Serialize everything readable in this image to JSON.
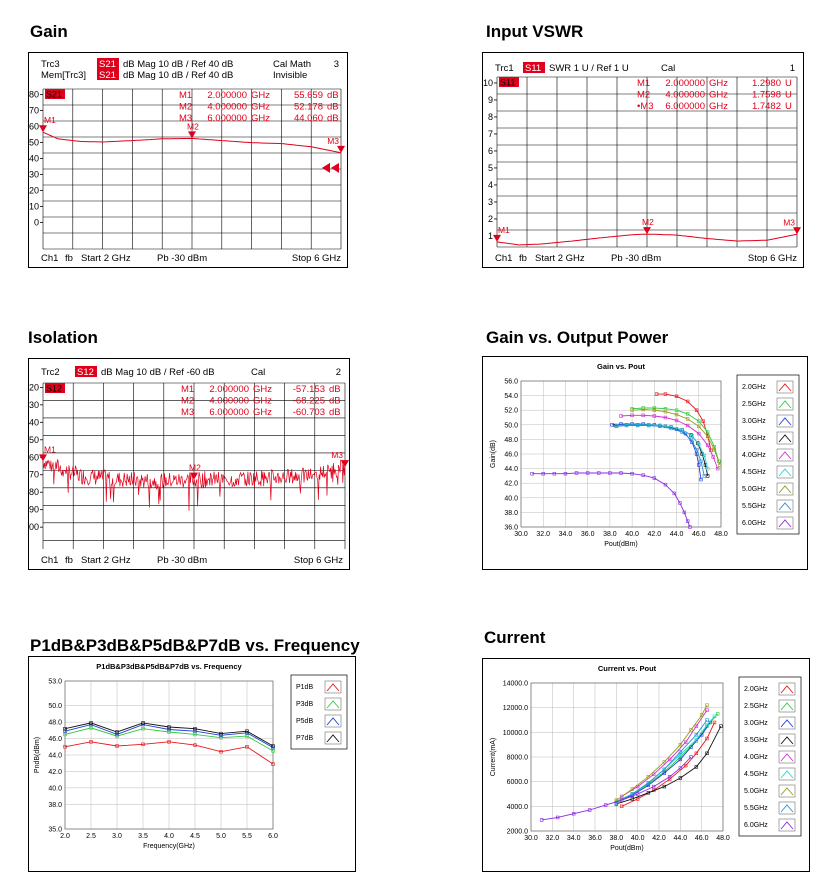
{
  "section_titles": {
    "gain": "Gain",
    "vswr": "Input VSWR",
    "isolation": "Isolation",
    "gvp": "Gain vs. Output Power",
    "p1db": "P1dB&P3dB&P5dB&P7dB vs. Frequency",
    "current": "Current"
  },
  "colors": {
    "trace": "#e0001b",
    "badge": "#e0001b",
    "grid": "#000000"
  },
  "vna_gain": {
    "header": [
      {
        "label": "Trc3",
        "badge": "S21",
        "rest": "dB Mag  10 dB /  Ref 40 dB",
        "extra": "Cal Math",
        "num": "3"
      },
      {
        "label": "Mem[Trc3]",
        "badge": "S21",
        "rest": "dB Mag  10 dB /  Ref 40 dB",
        "extra": "Invisible",
        "num": ""
      }
    ],
    "trace_badge": "S21",
    "markers": [
      {
        "name": "M1",
        "freq": "2.000000",
        "unit": "GHz",
        "value": "55.659",
        "vunit": "dB"
      },
      {
        "name": "M2",
        "freq": "4.000000",
        "unit": "GHz",
        "value": "52.178",
        "vunit": "dB"
      },
      {
        "name": "M3",
        "freq": "6.000000",
        "unit": "GHz",
        "value": "44.060",
        "vunit": "dB"
      }
    ],
    "marker_labels": [
      "M1",
      "M2",
      "M3"
    ],
    "yticks": [
      "80",
      "70",
      "60",
      "50",
      "40",
      "30",
      "20",
      "10",
      "0"
    ],
    "footer": {
      "ch": "Ch1",
      "fb": "fb",
      "start": "Start  2 GHz",
      "pb": "Pb   -30 dBm",
      "stop": "Stop  6 GHz"
    }
  },
  "vna_vswr": {
    "header": {
      "label": "Trc1",
      "badge": "S11",
      "rest": "SWR  1 U /  Ref 1 U",
      "extra": "Cal",
      "num": "1"
    },
    "trace_badge": "S11",
    "markers": [
      {
        "name": "M1",
        "freq": "2.000000",
        "unit": "GHz",
        "value": "1.2980",
        "vunit": "U"
      },
      {
        "name": "M2",
        "freq": "4.000000",
        "unit": "GHz",
        "value": "1.7598",
        "vunit": "U"
      },
      {
        "name": "•M3",
        "freq": "6.000000",
        "unit": "GHz",
        "value": "1.7482",
        "vunit": "U"
      }
    ],
    "marker_labels": [
      "M1",
      "M2",
      "M3"
    ],
    "yticks": [
      "10",
      "9",
      "8",
      "7",
      "6",
      "5",
      "4",
      "3",
      "2",
      "1"
    ],
    "footer": {
      "ch": "Ch1",
      "fb": "fb",
      "start": "Start  2 GHz",
      "pb": "Pb   -30 dBm",
      "stop": "Stop  6 GHz"
    }
  },
  "vna_iso": {
    "header": {
      "label": "Trc2",
      "badge": "S12",
      "rest": "dB Mag  10 dB /  Ref -60 dB",
      "extra": "Cal",
      "num": "2"
    },
    "trace_badge": "S12",
    "markers": [
      {
        "name": "M1",
        "freq": "2.000000",
        "unit": "GHz",
        "value": "-57.153",
        "vunit": "dB"
      },
      {
        "name": "M2",
        "freq": "4.000000",
        "unit": "GHz",
        "value": "-68.225",
        "vunit": "dB"
      },
      {
        "name": "M3",
        "freq": "6.000000",
        "unit": "GHz",
        "value": "-60.703",
        "vunit": "dB"
      }
    ],
    "marker_labels": [
      "M1",
      "M2",
      "M3"
    ],
    "yticks": [
      "-20",
      "-30",
      "-40",
      "-50",
      "-60",
      "-70",
      "-80",
      "-90",
      "-100"
    ],
    "footer": {
      "ch": "Ch1",
      "fb": "fb",
      "start": "Start  2 GHz",
      "pb": "Pb   -30 dBm",
      "stop": "Stop  6 GHz"
    }
  },
  "chart_data": [
    {
      "id": "gain",
      "type": "line",
      "title": "",
      "x_range_ghz": [
        2,
        6
      ],
      "ylim": [
        -10,
        80
      ],
      "x": [
        2.0,
        2.2,
        2.5,
        2.8,
        3.0,
        3.3,
        3.6,
        4.0,
        4.4,
        4.8,
        5.2,
        5.6,
        6.0
      ],
      "series": [
        {
          "values": [
            55.7,
            52,
            50.5,
            50.2,
            50.6,
            51.2,
            52.0,
            52.2,
            51.0,
            49.8,
            49.3,
            47.5,
            44.1
          ]
        }
      ]
    },
    {
      "id": "vswr",
      "type": "line",
      "title": "",
      "x_range_ghz": [
        2,
        6
      ],
      "ylim": [
        1,
        11
      ],
      "x": [
        2.0,
        2.3,
        2.6,
        3.0,
        3.4,
        3.8,
        4.0,
        4.4,
        4.8,
        5.2,
        5.6,
        6.0
      ],
      "series": [
        {
          "values": [
            1.3,
            1.12,
            1.18,
            1.35,
            1.55,
            1.72,
            1.76,
            1.7,
            1.5,
            1.35,
            1.4,
            1.75
          ]
        }
      ]
    },
    {
      "id": "isolation",
      "type": "line",
      "title": "",
      "x_range_ghz": [
        2,
        6
      ],
      "ylim": [
        -110,
        -10
      ],
      "x": [
        2.0,
        2.5,
        3.0,
        3.5,
        4.0,
        4.5,
        5.0,
        5.5,
        6.0
      ],
      "series": [
        {
          "values": [
            -57.2,
            -66,
            -68,
            -69,
            -68.2,
            -68,
            -67,
            -66,
            -60.7
          ]
        }
      ]
    },
    {
      "id": "gain_vs_pout",
      "type": "line",
      "title": "Gain vs. Pout",
      "xlabel": "Pout(dBm)",
      "ylabel": "Gain(dB)",
      "xlim": [
        30,
        48
      ],
      "ylim": [
        36,
        56
      ],
      "xticks": [
        "30.0",
        "32.0",
        "34.0",
        "36.0",
        "38.0",
        "40.0",
        "42.0",
        "44.0",
        "46.0",
        "48.0"
      ],
      "yticks": [
        "56.0",
        "54.0",
        "52.0",
        "50.0",
        "48.0",
        "46.0",
        "44.0",
        "42.0",
        "40.0",
        "38.0",
        "36.0"
      ],
      "legend_position": "right",
      "series": [
        {
          "name": "2.0GHz",
          "color": "#e8191b",
          "x": [
            42.2,
            43.0,
            44.0,
            45.0,
            45.8,
            46.4,
            46.8,
            47.1
          ],
          "y": [
            54.2,
            54.2,
            53.9,
            53.2,
            52.0,
            50.5,
            48.5,
            46.5
          ]
        },
        {
          "name": "2.5GHz",
          "color": "#2ecc40",
          "x": [
            40.0,
            41.0,
            42.0,
            43.0,
            44.0,
            45.0,
            46.0,
            46.8,
            47.4,
            47.8
          ],
          "y": [
            52.2,
            52.3,
            52.3,
            52.2,
            52.0,
            51.5,
            50.5,
            49.0,
            47.0,
            45.0
          ]
        },
        {
          "name": "3.0GHz",
          "color": "#1f3fd6",
          "x": [
            38.2,
            39.0,
            40.0,
            41.0,
            42.0,
            43.0,
            44.0,
            44.8,
            45.4,
            45.8,
            46.0,
            46.2
          ],
          "y": [
            50.0,
            50.1,
            50.1,
            50.1,
            50.0,
            49.8,
            49.4,
            48.8,
            47.6,
            46.0,
            44.5,
            42.5
          ]
        },
        {
          "name": "3.5GHz",
          "color": "#111111",
          "x": [
            38.5,
            39.5,
            40.5,
            41.5,
            42.5,
            43.5,
            44.5,
            45.3,
            45.9,
            46.3,
            46.6,
            46.8
          ],
          "y": [
            49.9,
            50.0,
            50.0,
            50.0,
            49.9,
            49.7,
            49.3,
            48.6,
            47.5,
            46.0,
            44.5,
            43.0
          ]
        },
        {
          "name": "4.0GHz",
          "color": "#d12fd1",
          "x": [
            39.0,
            40.0,
            41.0,
            42.0,
            43.0,
            44.0,
            45.0,
            46.0,
            46.8,
            47.3,
            47.7
          ],
          "y": [
            51.2,
            51.3,
            51.3,
            51.2,
            51.0,
            50.6,
            49.9,
            48.8,
            47.2,
            45.6,
            44.0
          ]
        },
        {
          "name": "4.5GHz",
          "color": "#22d6d6",
          "x": [
            38.6,
            39.5,
            40.5,
            41.5,
            42.5,
            43.5,
            44.5,
            45.4,
            46.0,
            46.5,
            46.8
          ],
          "y": [
            49.9,
            50.0,
            50.0,
            50.0,
            49.9,
            49.7,
            49.3,
            48.5,
            47.3,
            45.8,
            44.0
          ]
        },
        {
          "name": "5.0GHz",
          "color": "#9a9a1a",
          "x": [
            40.0,
            41.0,
            42.0,
            43.0,
            44.0,
            45.0,
            46.0,
            46.8,
            47.4,
            47.9
          ],
          "y": [
            52.0,
            52.1,
            52.0,
            51.8,
            51.4,
            50.8,
            49.8,
            48.4,
            46.6,
            44.5
          ]
        },
        {
          "name": "5.5GHz",
          "color": "#2b8fd8",
          "x": [
            38.6,
            39.5,
            40.5,
            41.5,
            42.5,
            43.5,
            44.5,
            45.3,
            45.8,
            46.2,
            46.5
          ],
          "y": [
            49.8,
            49.9,
            49.9,
            49.9,
            49.8,
            49.5,
            49.0,
            48.0,
            46.6,
            45.0,
            43.0
          ]
        },
        {
          "name": "6.0GHz",
          "color": "#8a2be2",
          "x": [
            31.0,
            32.0,
            33.0,
            34.0,
            35.0,
            36.0,
            37.0,
            38.0,
            39.0,
            40.0,
            41.0,
            42.0,
            43.0,
            43.8,
            44.3,
            44.7,
            45.0,
            45.2
          ],
          "y": [
            43.3,
            43.3,
            43.3,
            43.3,
            43.4,
            43.4,
            43.4,
            43.4,
            43.4,
            43.3,
            43.1,
            42.7,
            41.8,
            40.6,
            39.3,
            38.0,
            36.8,
            36.0
          ]
        }
      ]
    },
    {
      "id": "p1db",
      "type": "line",
      "title": "P1dB&P3dB&P5dB&P7dB vs. Frequency",
      "xlabel": "Frequency(GHz)",
      "ylabel": "PndB(dBm)",
      "xlim": [
        2.0,
        6.0
      ],
      "ylim": [
        35.0,
        53.0
      ],
      "xticks": [
        "2.0",
        "2.5",
        "3.0",
        "3.5",
        "4.0",
        "4.5",
        "5.0",
        "5.5",
        "6.0"
      ],
      "yticks": [
        "53.0",
        "50.0",
        "48.0",
        "46.0",
        "44.0",
        "42.0",
        "40.0",
        "38.0",
        "35.0"
      ],
      "ytick_values": [
        53,
        50,
        48,
        46,
        44,
        42,
        40,
        38,
        35
      ],
      "legend_position": "right",
      "x": [
        2.0,
        2.5,
        3.0,
        3.5,
        4.0,
        4.5,
        5.0,
        5.5,
        6.0
      ],
      "series": [
        {
          "name": "P1dB",
          "color": "#e8191b",
          "values": [
            45.0,
            45.6,
            45.1,
            45.3,
            45.6,
            45.2,
            44.4,
            45.0,
            42.9
          ]
        },
        {
          "name": "P3dB",
          "color": "#2ecc40",
          "values": [
            46.5,
            47.3,
            46.3,
            47.2,
            46.8,
            46.5,
            46.1,
            46.3,
            44.5
          ]
        },
        {
          "name": "P5dB",
          "color": "#1f3fd6",
          "values": [
            46.9,
            47.7,
            46.5,
            47.7,
            47.1,
            46.9,
            46.4,
            46.7,
            44.9
          ]
        },
        {
          "name": "P7dB",
          "color": "#111111",
          "values": [
            47.2,
            47.9,
            46.8,
            47.9,
            47.4,
            47.2,
            46.6,
            46.9,
            45.1
          ]
        }
      ]
    },
    {
      "id": "current",
      "type": "line",
      "title": "Current vs. Pout",
      "xlabel": "Pout(dBm)",
      "ylabel": "Current(mA)",
      "xlim": [
        30,
        48
      ],
      "ylim": [
        2000,
        14000
      ],
      "xticks": [
        "30.0",
        "32.0",
        "34.0",
        "36.0",
        "38.0",
        "40.0",
        "42.0",
        "44.0",
        "46.0",
        "48.0"
      ],
      "yticks": [
        "14000.0",
        "12000.0",
        "10000.0",
        "8000.0",
        "6000.0",
        "4000.0",
        "2000.0"
      ],
      "legend_position": "right",
      "series": [
        {
          "name": "2.0GHz",
          "color": "#e8191b",
          "x": [
            38.5,
            40,
            41.5,
            43,
            44.5,
            45.5,
            46.5,
            47.2
          ],
          "y": [
            4000,
            4600,
            5300,
            6200,
            7300,
            8300,
            9500,
            10800
          ]
        },
        {
          "name": "2.5GHz",
          "color": "#2ecc40",
          "x": [
            38,
            39.5,
            41,
            42.5,
            44,
            45.5,
            46.5,
            47.5
          ],
          "y": [
            4400,
            5000,
            5800,
            6800,
            8000,
            9300,
            10500,
            11500
          ]
        },
        {
          "name": "3.0GHz",
          "color": "#1f3fd6",
          "x": [
            38,
            39.5,
            41,
            42.5,
            44,
            45,
            46,
            46.8
          ],
          "y": [
            4300,
            4900,
            5700,
            6700,
            7800,
            8800,
            9800,
            10800
          ]
        },
        {
          "name": "3.5GHz",
          "color": "#111111",
          "x": [
            38,
            39.5,
            41,
            42.5,
            44,
            45.5,
            46.5,
            47.8
          ],
          "y": [
            4200,
            4600,
            5100,
            5600,
            6300,
            7200,
            8300,
            10500
          ]
        },
        {
          "name": "4.0GHz",
          "color": "#d12fd1",
          "x": [
            38.5,
            40,
            41.5,
            43,
            44.5,
            45.5,
            46.5
          ],
          "y": [
            4800,
            5600,
            6600,
            7800,
            9200,
            10500,
            11800
          ]
        },
        {
          "name": "4.5GHz",
          "color": "#22d6d6",
          "x": [
            38,
            39.5,
            41,
            42.5,
            44,
            45.5,
            46.5,
            47.2
          ],
          "y": [
            4300,
            5000,
            5900,
            7000,
            8200,
            9400,
            10600,
            11300
          ]
        },
        {
          "name": "5.0GHz",
          "color": "#9a9a1a",
          "x": [
            38,
            39.5,
            41,
            42.5,
            44,
            45,
            46,
            46.5
          ],
          "y": [
            4500,
            5400,
            6400,
            7600,
            9000,
            10200,
            11400,
            12200
          ]
        },
        {
          "name": "5.5GHz",
          "color": "#2b8fd8",
          "x": [
            38,
            39.5,
            41,
            42.5,
            44,
            45.5,
            46.5
          ],
          "y": [
            4300,
            5000,
            5900,
            7000,
            8400,
            9800,
            11000
          ]
        },
        {
          "name": "6.0GHz",
          "color": "#8a2be2",
          "x": [
            31,
            32.5,
            34,
            35.5,
            37,
            38.5,
            40,
            41.5,
            43,
            44,
            45
          ],
          "y": [
            2900,
            3100,
            3400,
            3700,
            4100,
            4500,
            5000,
            5600,
            6400,
            7100,
            8000
          ]
        }
      ]
    }
  ]
}
